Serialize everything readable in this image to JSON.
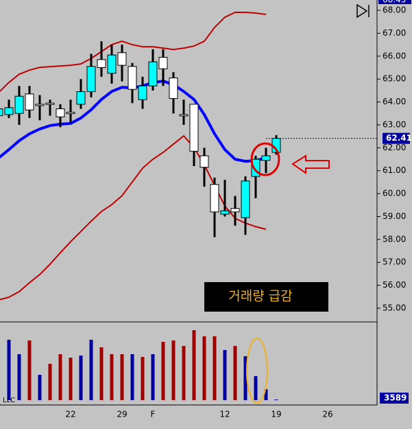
{
  "chart_data": [
    {
      "type": "candlestick",
      "open": [
        63.4,
        63.45,
        63.5,
        64.35,
        63.9,
        63.95,
        63.7,
        63.55,
        63.9,
        64.45,
        65.85,
        65.25,
        66.15,
        65.55,
        64.1,
        64.7,
        65.95,
        65.05,
        63.45,
        63.9,
        61.65,
        60.4,
        59.1,
        59.35,
        58.95,
        60.75,
        61.45,
        61.8
      ],
      "high": [
        63.9,
        64.1,
        64.7,
        64.7,
        64.3,
        64.1,
        63.9,
        64.1,
        65.0,
        66.1,
        66.65,
        66.5,
        66.5,
        65.7,
        65.1,
        66.3,
        66.3,
        65.3,
        64.1,
        63.9,
        62.0,
        60.7,
        60.6,
        59.9,
        60.75,
        61.65,
        62.0,
        62.55
      ],
      "low": [
        63.3,
        63.3,
        63.0,
        63.3,
        63.2,
        63.4,
        62.9,
        63.1,
        63.7,
        64.2,
        65.1,
        64.8,
        64.9,
        63.95,
        63.7,
        64.5,
        64.7,
        63.5,
        63.0,
        61.2,
        60.3,
        58.1,
        59.0,
        58.6,
        58.2,
        59.8,
        60.9,
        61.7
      ],
      "close": [
        63.7,
        63.75,
        64.25,
        63.65,
        63.85,
        63.9,
        63.35,
        63.5,
        64.45,
        65.55,
        65.5,
        66.05,
        65.6,
        64.55,
        64.7,
        65.75,
        65.45,
        64.15,
        63.4,
        61.85,
        61.15,
        59.2,
        59.25,
        59.2,
        60.55,
        61.5,
        61.65,
        62.41
      ],
      "up_color": "#00ffff",
      "down_color": "#ffffff",
      "lines": [
        {
          "color": "#0000ff",
          "values": [
            61.56,
            61.92,
            62.31,
            62.61,
            62.82,
            62.97,
            63.03,
            63.06,
            63.3,
            63.66,
            64.11,
            64.46,
            64.64,
            64.61,
            64.7,
            64.85,
            64.91,
            64.76,
            64.46,
            64.11,
            63.45,
            62.61,
            61.92,
            61.5,
            61.41,
            61.44,
            61.56,
            null
          ]
        },
        {
          "color": "#c00000",
          "values": [
            64.41,
            64.85,
            65.21,
            65.39,
            65.51,
            65.54,
            65.57,
            65.6,
            65.66,
            65.9,
            66.2,
            66.5,
            66.65,
            66.5,
            66.41,
            66.41,
            66.35,
            66.29,
            66.35,
            66.44,
            66.65,
            67.25,
            67.7,
            67.91,
            67.91,
            67.88,
            67.82,
            null
          ]
        },
        {
          "color": "#c00000",
          "values": [
            55.36,
            55.48,
            55.72,
            56.11,
            56.47,
            56.92,
            57.42,
            57.9,
            58.35,
            58.8,
            59.22,
            59.52,
            59.91,
            60.51,
            61.11,
            61.5,
            61.8,
            62.16,
            62.52,
            62.01,
            61.26,
            60.36,
            59.46,
            58.92,
            58.71,
            58.56,
            58.44,
            null
          ]
        }
      ],
      "ylim": [
        54.43,
        68.45
      ],
      "yticks": [
        {
          "value": 55,
          "label": "55.00"
        },
        {
          "value": 56,
          "label": "56.00"
        },
        {
          "value": 57,
          "label": "57.00"
        },
        {
          "value": 58,
          "label": "58.00"
        },
        {
          "value": 59,
          "label": "59.00"
        },
        {
          "value": 60,
          "label": "60.00"
        },
        {
          "value": 61,
          "label": "61.00"
        },
        {
          "value": 62,
          "label": "62.00"
        },
        {
          "value": 63,
          "label": "63.00"
        },
        {
          "value": 64,
          "label": "64.00"
        },
        {
          "value": 65,
          "label": "65.00"
        },
        {
          "value": 66,
          "label": "66.00"
        },
        {
          "value": 67,
          "label": "67.00"
        },
        {
          "value": 68,
          "label": "68.00"
        }
      ],
      "annotation": "거래량 급감"
    },
    {
      "type": "bar",
      "categories": [
        null,
        null,
        null,
        null,
        null,
        null,
        null,
        "22",
        null,
        null,
        null,
        null,
        "29",
        null,
        null,
        "F",
        null,
        null,
        null,
        null,
        null,
        null,
        "12",
        null,
        null,
        null,
        null,
        "19",
        null,
        null,
        null,
        null,
        "26",
        null,
        null,
        null,
        null
      ],
      "values": [
        null,
        88,
        67,
        87,
        37,
        53,
        67,
        62,
        65,
        88,
        77,
        67,
        67,
        67,
        63,
        67,
        85,
        87,
        79,
        102,
        93,
        93,
        73,
        79,
        64,
        35,
        16,
        1,
        null,
        null,
        null,
        null,
        null,
        null,
        null,
        null,
        null
      ],
      "colors": [
        null,
        "#0000a0",
        "#0000a0",
        "#a00000",
        "#0000a0",
        "#a00000",
        "#a00000",
        "#a00000",
        "#0000a0",
        "#0000a0",
        "#a00000",
        "#a00000",
        "#a00000",
        "#0000a0",
        "#a00000",
        "#0000a0",
        "#a00000",
        "#a00000",
        "#a00000",
        "#a00000",
        "#a00000",
        "#a00000",
        "#0000a0",
        "#a00000",
        "#0000a0",
        "#0000a0",
        "#0000a0",
        "#0000a0",
        null,
        null,
        null,
        null,
        null,
        null,
        null,
        null,
        null
      ],
      "ylim": [
        0,
        113
      ],
      "axis_label": "3589",
      "corner_label": "LLC"
    }
  ]
}
